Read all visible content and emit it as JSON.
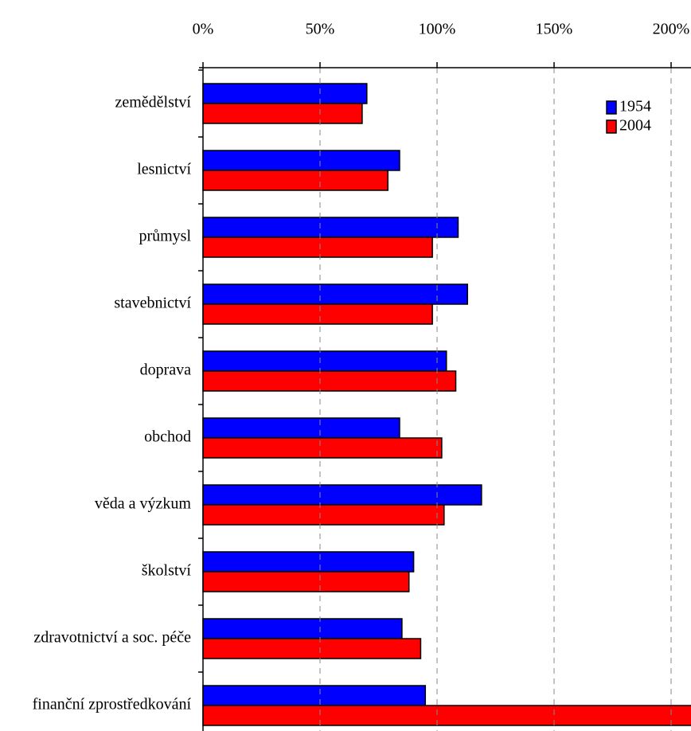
{
  "chart_data": {
    "type": "barh",
    "categories": [
      "zemědělství",
      "lesnictví",
      "průmysl",
      "stavebnictví",
      "doprava",
      "obchod",
      "věda a výzkum",
      "školství",
      "zdravotnictví a soc. péče",
      "finanční zprostředkování"
    ],
    "series": [
      {
        "name": "1954",
        "color": "#0000ff",
        "values": [
          70,
          84,
          109,
          113,
          104,
          84,
          119,
          90,
          85,
          95
        ]
      },
      {
        "name": "2004",
        "color": "#ff0000",
        "values": [
          68,
          79,
          98,
          98,
          108,
          102,
          103,
          88,
          93,
          210
        ]
      }
    ],
    "xlim": [
      0,
      208.5
    ],
    "xticks": [
      {
        "value": 0,
        "label": "0%"
      },
      {
        "value": 50,
        "label": "50%"
      },
      {
        "value": 100,
        "label": "100%"
      },
      {
        "value": 150,
        "label": "150%"
      },
      {
        "value": 200,
        "label": "200%"
      }
    ],
    "grid": true,
    "legend": "upper right"
  }
}
